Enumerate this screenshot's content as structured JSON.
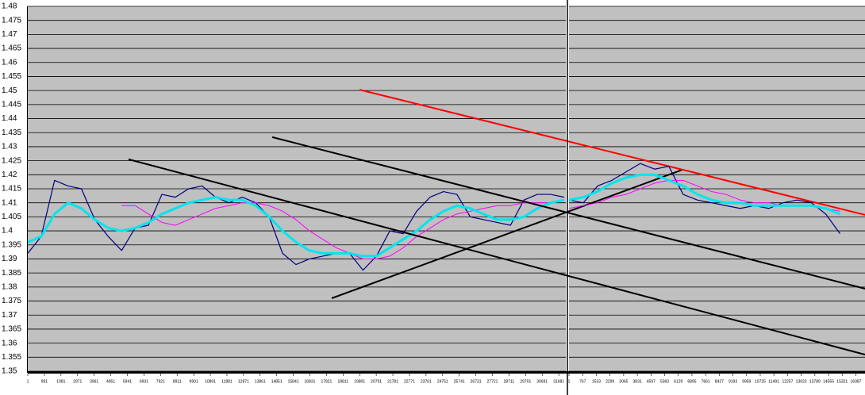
{
  "chart_data": [
    {
      "type": "line",
      "xlim": [
        0,
        32100
      ],
      "ylim": [
        1.35,
        1.48
      ],
      "yticks": [
        1.35,
        1.355,
        1.36,
        1.365,
        1.37,
        1.375,
        1.38,
        1.385,
        1.39,
        1.395,
        1.4,
        1.405,
        1.41,
        1.415,
        1.42,
        1.425,
        1.43,
        1.435,
        1.44,
        1.445,
        1.45,
        1.455,
        1.46,
        1.465,
        1.47,
        1.475,
        1.48
      ],
      "xticks": [
        1,
        991,
        1981,
        2971,
        3961,
        4951,
        5941,
        6931,
        7921,
        8911,
        9901,
        10891,
        11881,
        12871,
        13861,
        14851,
        15841,
        16831,
        17821,
        18811,
        19801,
        20791,
        21781,
        22771,
        23761,
        24751,
        25741,
        26731,
        27721,
        28711,
        29701,
        30691,
        31681
      ],
      "grid": true,
      "x": [
        0,
        800,
        1600,
        2400,
        3200,
        4000,
        4800,
        5600,
        6400,
        7200,
        8000,
        8800,
        9600,
        10400,
        11200,
        12000,
        12800,
        13600,
        14400,
        15200,
        16000,
        16800,
        17600,
        18400,
        19200,
        20000,
        20800,
        21600,
        22400,
        23200,
        24000,
        24800,
        25600,
        26400,
        27200,
        28000,
        28800,
        29600,
        30400,
        31200,
        32000
      ],
      "series": [
        {
          "color": "#000080",
          "width": 1.2,
          "values": [
            1.392,
            1.398,
            1.418,
            1.416,
            1.415,
            1.404,
            1.398,
            1.393,
            1.401,
            1.402,
            1.413,
            1.412,
            1.415,
            1.416,
            1.412,
            1.41,
            1.412,
            1.41,
            1.405,
            1.392,
            1.388,
            1.39,
            1.391,
            1.392,
            1.392,
            1.386,
            1.391,
            1.4,
            1.399,
            1.407,
            1.412,
            1.414,
            1.413,
            1.405,
            1.404,
            1.403,
            1.402,
            1.411,
            1.413,
            1.413,
            1.412
          ]
        },
        {
          "color": "#ff00ff",
          "width": 1,
          "values": [
            null,
            null,
            null,
            null,
            null,
            null,
            null,
            1.409,
            1.409,
            1.406,
            1.403,
            1.402,
            1.404,
            1.406,
            1.408,
            1.409,
            1.41,
            1.41,
            1.409,
            1.407,
            1.404,
            1.4,
            1.397,
            1.394,
            1.392,
            1.39,
            1.39,
            1.391,
            1.394,
            1.398,
            1.401,
            1.404,
            1.406,
            1.407,
            1.408,
            1.409,
            1.409,
            1.41,
            1.41,
            1.41,
            1.411
          ]
        },
        {
          "color": "#00e5ee",
          "width": 3,
          "values": [
            1.396,
            1.398,
            1.406,
            1.41,
            1.408,
            1.404,
            1.401,
            1.4,
            1.401,
            1.403,
            1.406,
            1.408,
            1.41,
            1.411,
            1.412,
            1.411,
            1.411,
            1.409,
            1.405,
            1.4,
            1.396,
            1.393,
            1.392,
            1.392,
            1.392,
            1.391,
            1.391,
            1.394,
            1.397,
            1.4,
            1.404,
            1.407,
            1.409,
            1.408,
            1.406,
            1.404,
            1.404,
            1.405,
            1.408,
            1.41,
            1.411
          ]
        }
      ],
      "trend_lines": [
        {
          "color": "#000000",
          "x": [
            6013,
            49954
          ],
          "y": [
            1.4255,
            1.3559
          ]
        },
        {
          "color": "#000000",
          "x": [
            14584,
            49954
          ],
          "y": [
            1.4334,
            1.3794
          ]
        },
        {
          "color": "#000000",
          "x": [
            18135,
            39064
          ],
          "y": [
            1.376,
            1.4218
          ]
        },
        {
          "color": "#ff0000",
          "x": [
            19792,
            49954
          ],
          "y": [
            1.4503,
            1.4057
          ]
        }
      ]
    },
    {
      "type": "line",
      "xlim": [
        0,
        16600
      ],
      "ylim": [
        1.35,
        1.48
      ],
      "xticks": [
        1,
        767,
        1533,
        2299,
        3065,
        3831,
        4597,
        5363,
        6129,
        6895,
        7661,
        8427,
        9193,
        9959,
        10725,
        11491,
        12257,
        13023,
        13789,
        14555,
        15321,
        16087
      ],
      "x": [
        0,
        800,
        1600,
        2400,
        3200,
        4000,
        4800,
        5600,
        6400,
        7200,
        8000,
        8800,
        9600,
        10400,
        11200,
        12000,
        12800,
        13600,
        14400,
        15200
      ],
      "series": [
        {
          "color": "#000080",
          "width": 1.2,
          "values": [
            1.411,
            1.41,
            1.416,
            1.418,
            1.421,
            1.424,
            1.422,
            1.423,
            1.413,
            1.411,
            1.41,
            1.409,
            1.408,
            1.409,
            1.408,
            1.41,
            1.411,
            1.41,
            1.406,
            1.399
          ]
        },
        {
          "color": "#ff00ff",
          "width": 1,
          "values": [
            1.408,
            1.409,
            1.41,
            1.412,
            1.413,
            1.415,
            1.417,
            1.418,
            1.418,
            1.416,
            1.414,
            1.413,
            1.411,
            1.41,
            1.41,
            1.409,
            1.409,
            1.409,
            1.408,
            1.407
          ]
        },
        {
          "color": "#00e5ee",
          "width": 3,
          "values": [
            1.411,
            1.412,
            1.414,
            1.417,
            1.419,
            1.42,
            1.42,
            1.418,
            1.416,
            1.413,
            1.411,
            1.41,
            1.41,
            1.409,
            1.409,
            1.409,
            1.409,
            1.409,
            1.408,
            1.406
          ]
        }
      ]
    }
  ]
}
